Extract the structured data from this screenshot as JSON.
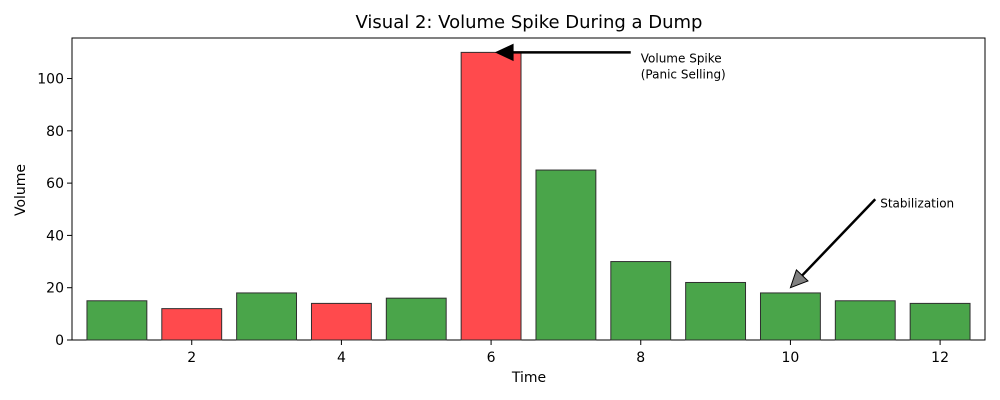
{
  "chart_data": {
    "type": "bar",
    "title": "Visual 2: Volume Spike During a Dump",
    "xlabel": "Time",
    "ylabel": "Volume",
    "x": [
      1,
      2,
      3,
      4,
      5,
      6,
      7,
      8,
      9,
      10,
      11,
      12
    ],
    "values": [
      15,
      12,
      18,
      14,
      16,
      110,
      65,
      30,
      22,
      18,
      15,
      14
    ],
    "bar_colors": [
      "green",
      "red",
      "green",
      "red",
      "green",
      "red",
      "green",
      "green",
      "green",
      "green",
      "green",
      "green"
    ],
    "colors": {
      "green": "#4aa54a",
      "red": "#ff4a4d",
      "edge": "#2f2f2f"
    },
    "xlim": [
      0.4,
      12.6
    ],
    "ylim": [
      0,
      115.5
    ],
    "xticks": [
      2,
      4,
      6,
      8,
      10,
      12
    ],
    "yticks": [
      0,
      20,
      40,
      60,
      80,
      100
    ],
    "grid": false,
    "annotations": [
      {
        "text_lines": [
          "Volume Spike",
          "(Panic Selling)"
        ],
        "xy": [
          6,
          110
        ],
        "text_xy": [
          8,
          110
        ],
        "arrow": "black"
      },
      {
        "text_lines": [
          "Stabilization"
        ],
        "xy": [
          10,
          20
        ],
        "text_xy": [
          11.2,
          50
        ],
        "arrow": "gray"
      }
    ]
  }
}
